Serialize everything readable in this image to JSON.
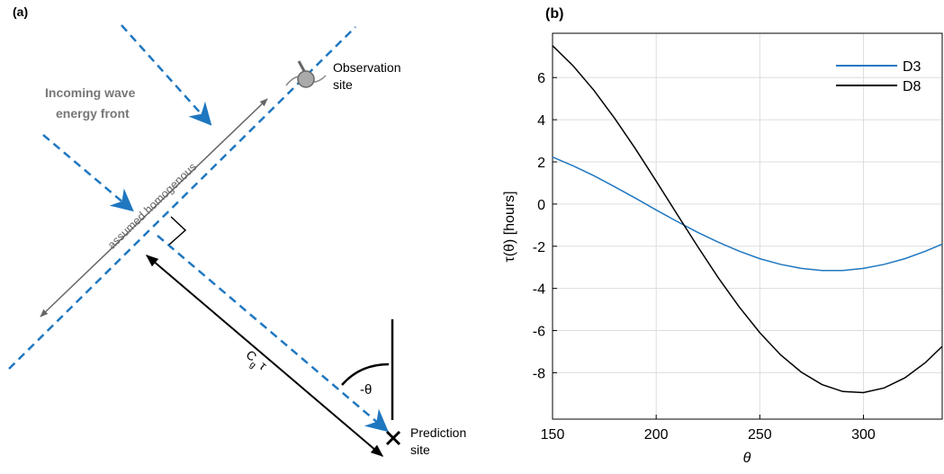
{
  "panel_a": {
    "label": "(a)",
    "incoming": [
      "Incoming wave",
      "energy front"
    ],
    "observation": [
      "Observation",
      "site"
    ],
    "homogenous": "assumed homogenous",
    "angle": "-θ",
    "prediction": [
      "Prediction",
      "site"
    ],
    "distance": {
      "base": "C",
      "subscript": "g",
      "factor": "τ"
    }
  },
  "chart_data": {
    "type": "line",
    "panel_label": "(b)",
    "x_label": "θ",
    "y_label": "τ(θ) [hours]",
    "x": [
      150,
      160,
      170,
      180,
      190,
      200,
      210,
      220,
      230,
      240,
      250,
      260,
      270,
      280,
      290,
      300,
      310,
      320,
      330,
      338
    ],
    "series": [
      {
        "name": "D3",
        "color": "#1f77c0",
        "values": [
          2.23,
          1.81,
          1.34,
          0.82,
          0.28,
          -0.28,
          -0.82,
          -1.34,
          -1.81,
          -2.23,
          -2.59,
          -2.86,
          -3.05,
          -3.15,
          -3.15,
          -3.05,
          -2.86,
          -2.59,
          -2.23,
          -1.9
        ]
      },
      {
        "name": "D8",
        "color": "#000000",
        "values": [
          7.51,
          6.55,
          5.39,
          4.06,
          2.62,
          1.09,
          -0.47,
          -2.01,
          -3.5,
          -4.87,
          -6.1,
          -7.15,
          -7.97,
          -8.56,
          -8.89,
          -8.94,
          -8.72,
          -8.24,
          -7.51,
          -6.75
        ]
      }
    ],
    "xlim": [
      150,
      338
    ],
    "ylim": [
      -10.2,
      8.1
    ],
    "xticks": [
      150,
      200,
      250,
      300
    ],
    "yticks": [
      -8,
      -6,
      -4,
      -2,
      0,
      2,
      4,
      6
    ],
    "grid": true,
    "legend": "upper right"
  }
}
